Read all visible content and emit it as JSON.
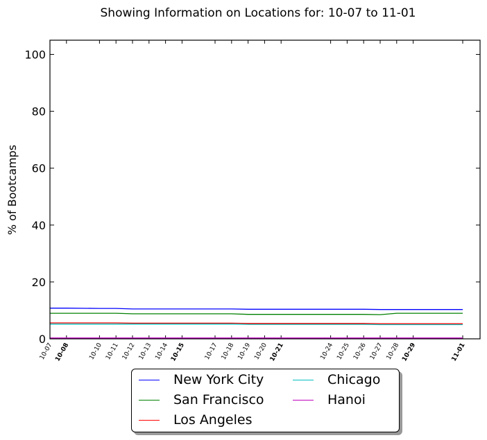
{
  "chart_data": {
    "type": "line",
    "title": "Showing Information on Locations for: 10-07 to 11-01",
    "ylabel": "% of Bootcamps",
    "xlabel": "",
    "ylim": [
      0,
      105
    ],
    "yticks": [
      0,
      20,
      40,
      60,
      80,
      100
    ],
    "x": [
      "10-07",
      "10-08",
      "10-10",
      "10-11",
      "10-12",
      "10-13",
      "10-14",
      "10-15",
      "10-17",
      "10-18",
      "10-19",
      "10-20",
      "10-21",
      "10-24",
      "10-25",
      "10-26",
      "10-27",
      "10-28",
      "10-29",
      "11-01"
    ],
    "bold_xticks": [
      "10-08",
      "10-15",
      "10-21",
      "10-29",
      "11-01"
    ],
    "legend_position": "below",
    "series": [
      {
        "name": "New York City",
        "color": "#0000ff",
        "values": [
          10.8,
          10.8,
          10.7,
          10.7,
          10.5,
          10.5,
          10.5,
          10.5,
          10.5,
          10.5,
          10.4,
          10.4,
          10.4,
          10.4,
          10.4,
          10.4,
          10.3,
          10.3,
          10.3,
          10.3
        ]
      },
      {
        "name": "San Francisco",
        "color": "#008000",
        "values": [
          9.0,
          9.0,
          9.0,
          9.0,
          8.8,
          8.8,
          8.8,
          8.8,
          8.8,
          8.8,
          8.6,
          8.6,
          8.6,
          8.6,
          8.6,
          8.6,
          8.5,
          9.0,
          9.0,
          9.0
        ]
      },
      {
        "name": "Los Angeles",
        "color": "#ff0000",
        "values": [
          5.6,
          5.6,
          5.6,
          5.6,
          5.5,
          5.5,
          5.5,
          5.5,
          5.5,
          5.5,
          5.4,
          5.4,
          5.4,
          5.4,
          5.4,
          5.4,
          5.3,
          5.3,
          5.3,
          5.3
        ]
      },
      {
        "name": "Chicago",
        "color": "#00bfbf",
        "values": [
          5.2,
          5.2,
          5.2,
          5.2,
          5.2,
          5.2,
          5.2,
          5.2,
          5.2,
          5.2,
          5.1,
          5.1,
          5.1,
          5.1,
          5.1,
          5.1,
          5.0,
          5.0,
          5.0,
          5.0
        ]
      },
      {
        "name": "Hanoi",
        "color": "#bf00bf",
        "values": [
          0.3,
          0.3,
          0.3,
          0.3,
          0.3,
          0.3,
          0.3,
          0.3,
          0.3,
          0.3,
          0.3,
          0.3,
          0.3,
          0.3,
          0.3,
          0.3,
          0.3,
          0.3,
          0.3,
          0.3
        ]
      }
    ]
  }
}
